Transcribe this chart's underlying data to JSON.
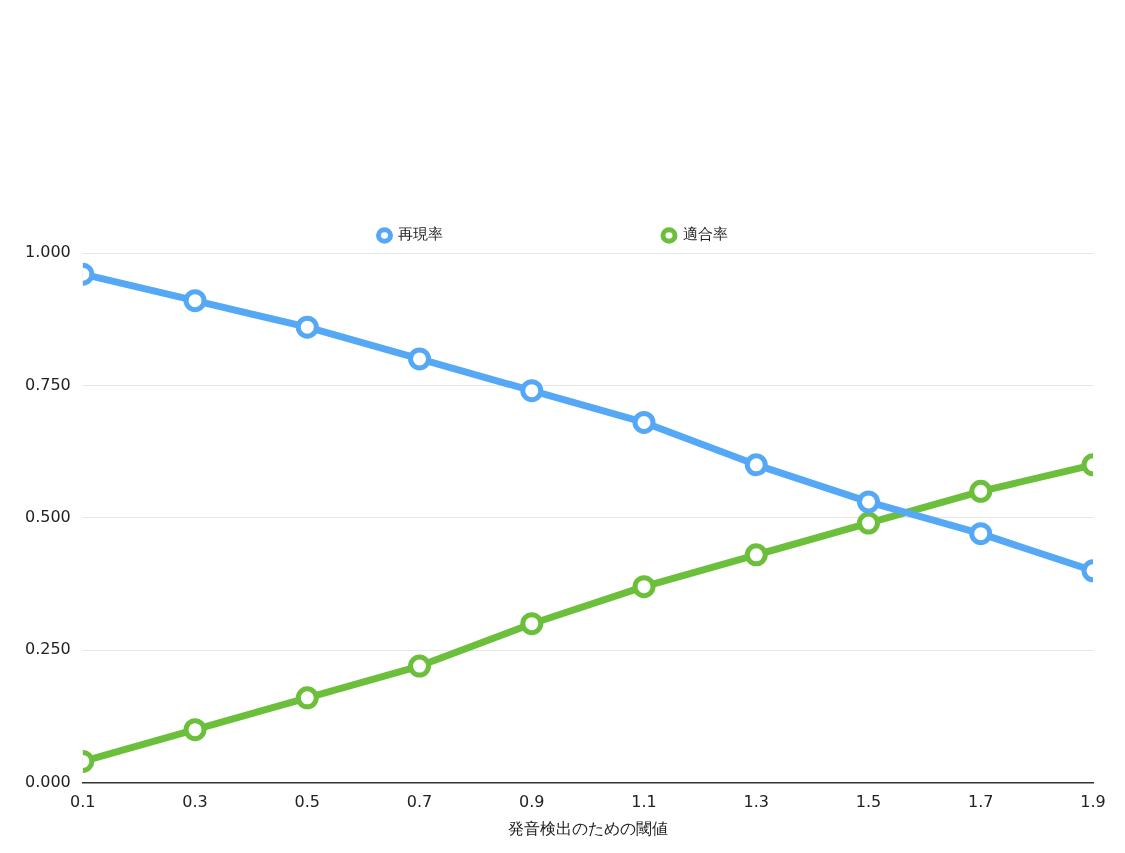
{
  "chart_data": {
    "type": "line",
    "xlabel": "発音検出のための閾値",
    "x": [
      0.1,
      0.3,
      0.5,
      0.7,
      0.9,
      1.1,
      1.3,
      1.5,
      1.7,
      1.9
    ],
    "xlim": [
      0.1,
      1.9
    ],
    "xticks": [
      0.1,
      0.3,
      0.5,
      0.7,
      0.9,
      1.1,
      1.3,
      1.5,
      1.7,
      1.9
    ],
    "ylim": [
      0,
      1
    ],
    "yticks": [
      {
        "value": 0,
        "label": "0.000"
      },
      {
        "value": 0.25,
        "label": "0.250"
      },
      {
        "value": 0.5,
        "label": "0.500"
      },
      {
        "value": 0.75,
        "label": "0.750"
      },
      {
        "value": 1,
        "label": "1.000"
      }
    ],
    "series": [
      {
        "name": "再現率",
        "color": "#55a8f5",
        "values": [
          0.96,
          0.91,
          0.86,
          0.8,
          0.74,
          0.68,
          0.6,
          0.53,
          0.47,
          0.4
        ]
      },
      {
        "name": "適合率",
        "color": "#6bbf3a",
        "values": [
          0.04,
          0.1,
          0.16,
          0.22,
          0.3,
          0.37,
          0.43,
          0.49,
          0.55,
          0.6
        ]
      }
    ],
    "grid": "y",
    "legend": "top",
    "marker": "circle",
    "line_style": "solid"
  }
}
